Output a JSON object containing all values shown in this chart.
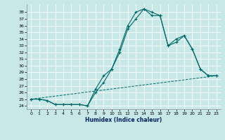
{
  "xlabel": "Humidex (Indice chaleur)",
  "bg_color": "#c8e8e8",
  "line_color": "#006868",
  "xlim": [
    -0.5,
    23.5
  ],
  "ylim": [
    23.5,
    39.2
  ],
  "xticks": [
    0,
    1,
    2,
    3,
    4,
    5,
    6,
    7,
    8,
    9,
    10,
    11,
    12,
    13,
    14,
    15,
    16,
    17,
    18,
    19,
    20,
    21,
    22,
    23
  ],
  "yticks": [
    24,
    25,
    26,
    27,
    28,
    29,
    30,
    31,
    32,
    33,
    34,
    35,
    36,
    37,
    38
  ],
  "series1_x": [
    0,
    1,
    2,
    3,
    4,
    5,
    6,
    7,
    8,
    9,
    10,
    11,
    12,
    13,
    14,
    15,
    16,
    17,
    18,
    19,
    20,
    21,
    22,
    23
  ],
  "series1_y": [
    25.0,
    25.0,
    24.8,
    24.2,
    24.2,
    24.2,
    24.2,
    24.0,
    26.0,
    27.5,
    29.5,
    32.0,
    35.5,
    37.0,
    38.5,
    37.5,
    37.5,
    33.0,
    34.0,
    34.5,
    32.5,
    29.5,
    28.5,
    28.5
  ],
  "series2_x": [
    0,
    1,
    2,
    3,
    4,
    5,
    6,
    7,
    8,
    9,
    10,
    11,
    12,
    13,
    14,
    15,
    16,
    17,
    18,
    19,
    20,
    21,
    22,
    23
  ],
  "series2_y": [
    25.0,
    25.0,
    24.8,
    24.2,
    24.2,
    24.2,
    24.2,
    24.0,
    26.5,
    28.5,
    29.5,
    32.5,
    36.0,
    38.0,
    38.5,
    38.0,
    37.5,
    33.0,
    33.5,
    34.5,
    32.5,
    29.5,
    28.5,
    28.5
  ],
  "series3_x": [
    0,
    23
  ],
  "series3_y": [
    25.0,
    28.5
  ]
}
